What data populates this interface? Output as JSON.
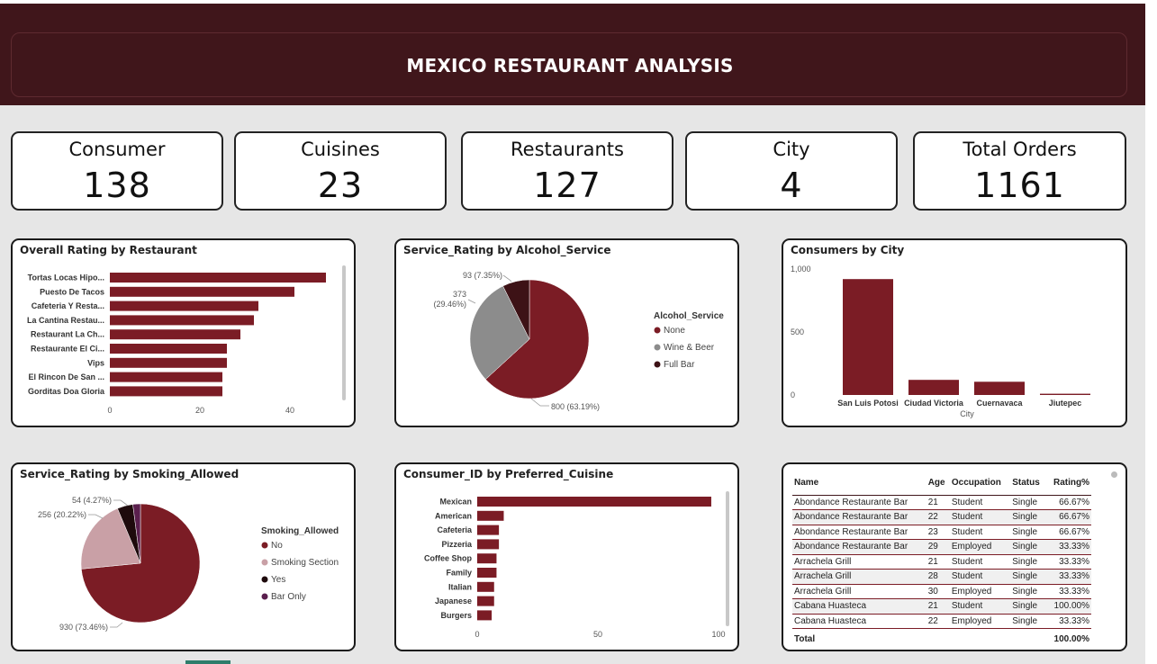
{
  "title": "MEXICO RESTAURANT ANALYSIS",
  "kpis": [
    {
      "label": "Consumer",
      "value": "138"
    },
    {
      "label": "Cuisines",
      "value": "23"
    },
    {
      "label": "Restaurants",
      "value": "127"
    },
    {
      "label": "City",
      "value": "4"
    },
    {
      "label": "Total Orders",
      "value": "1161"
    }
  ],
  "charts": {
    "rating_by_restaurant": {
      "title": "Overall Rating by Restaurant"
    },
    "alcohol": {
      "title": "Service_Rating by Alcohol_Service",
      "legend_title": "Alcohol_Service"
    },
    "city": {
      "title": "Consumers by City"
    },
    "smoking": {
      "title": "Service_Rating by Smoking_Allowed",
      "legend_title": "Smoking_Allowed"
    },
    "cuisine": {
      "title": "Consumer_ID by Preferred_Cuisine"
    }
  },
  "chart_data": [
    {
      "type": "bar",
      "orientation": "horizontal",
      "title": "Overall Rating by Restaurant",
      "categories": [
        "Tortas Locas Hipo...",
        "Puesto De Tacos",
        "Cafeteria Y Resta...",
        "La Cantina Restau...",
        "Restaurant La Ch...",
        "Restaurante El Ci...",
        "Vips",
        "El Rincon De San ...",
        "Gorditas Doa Gloria"
      ],
      "values": [
        48,
        41,
        33,
        32,
        29,
        26,
        26,
        25,
        25
      ],
      "xlim": [
        0,
        50
      ],
      "xticks": [
        "0",
        "20",
        "40"
      ],
      "color": "#7b1c25"
    },
    {
      "type": "pie",
      "title": "Service_Rating by Alcohol_Service",
      "legend_title": "Alcohol_Service",
      "slices": [
        {
          "name": "None",
          "value": 800,
          "label": "800 (63.19%)",
          "color": "#7b1c25"
        },
        {
          "name": "Wine & Beer",
          "value": 373,
          "label": "373 (29.46%)",
          "color": "#8c8c8c"
        },
        {
          "name": "Full Bar",
          "value": 93,
          "label": "93 (7.35%)",
          "color": "#3d1216"
        }
      ]
    },
    {
      "type": "bar",
      "orientation": "vertical",
      "title": "Consumers by City",
      "xlabel": "City",
      "categories": [
        "San Luis Potosi",
        "Ciudad Victoria",
        "Cuernavaca",
        "Jiutepec"
      ],
      "values": [
        920,
        120,
        105,
        10
      ],
      "ylim": [
        0,
        1000
      ],
      "yticks": [
        "0",
        "500",
        "1,000"
      ],
      "color": "#7b1c25"
    },
    {
      "type": "pie",
      "title": "Service_Rating by Smoking_Allowed",
      "legend_title": "Smoking_Allowed",
      "slices": [
        {
          "name": "No",
          "value": 930,
          "label": "930 (73.46%)",
          "color": "#7b1c25"
        },
        {
          "name": "Smoking Section",
          "value": 256,
          "label": "256 (20.22%)",
          "color": "#c9a0a6"
        },
        {
          "name": "Yes",
          "value": 54,
          "label": "54 (4.27%)",
          "color": "#1e0a0c"
        },
        {
          "name": "Bar Only",
          "value": 26,
          "label": "",
          "color": "#5a1f4d"
        }
      ]
    },
    {
      "type": "bar",
      "orientation": "horizontal",
      "title": "Consumer_ID by Preferred_Cuisine",
      "categories": [
        "Mexican",
        "American",
        "Cafeteria",
        "Pizzeria",
        "Coffee Shop",
        "Family",
        "Italian",
        "Japanese",
        "Burgers"
      ],
      "values": [
        97,
        11,
        9,
        9,
        8,
        8,
        7,
        7,
        6
      ],
      "xlim": [
        0,
        100
      ],
      "xticks": [
        "0",
        "50",
        "100"
      ],
      "color": "#7b1c25"
    }
  ],
  "table": {
    "headers": [
      "Name",
      "Age",
      "Occupation",
      "Status",
      "Rating%"
    ],
    "rows": [
      [
        "Abondance Restaurante Bar",
        "21",
        "Student",
        "Single",
        "66.67%"
      ],
      [
        "Abondance Restaurante Bar",
        "22",
        "Student",
        "Single",
        "66.67%"
      ],
      [
        "Abondance Restaurante Bar",
        "23",
        "Student",
        "Single",
        "66.67%"
      ],
      [
        "Abondance Restaurante Bar",
        "29",
        "Employed",
        "Single",
        "33.33%"
      ],
      [
        "Arrachela Grill",
        "21",
        "Student",
        "Single",
        "33.33%"
      ],
      [
        "Arrachela Grill",
        "28",
        "Student",
        "Single",
        "33.33%"
      ],
      [
        "Arrachela Grill",
        "30",
        "Employed",
        "Single",
        "33.33%"
      ],
      [
        "Cabana Huasteca",
        "21",
        "Student",
        "Single",
        "100.00%"
      ],
      [
        "Cabana Huasteca",
        "22",
        "Employed",
        "Single",
        "33.33%"
      ]
    ],
    "total_label": "Total",
    "total_value": "100.00%"
  },
  "colors": {
    "header_bg": "#40161b",
    "bar": "#7b1c25",
    "canvas": "#e6e6e6"
  }
}
